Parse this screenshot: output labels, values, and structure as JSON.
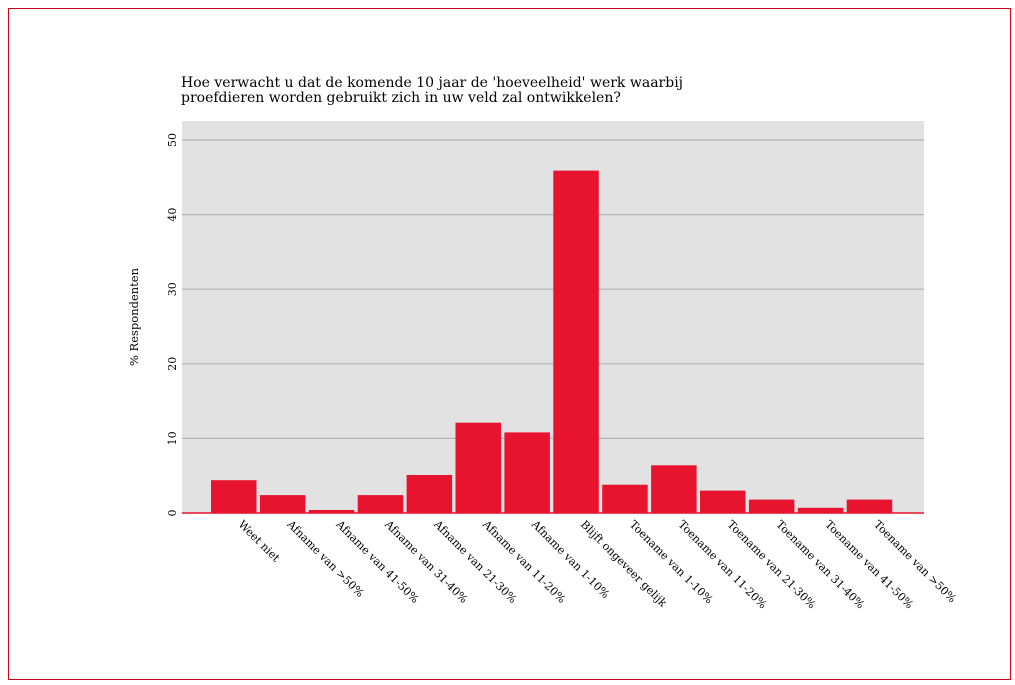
{
  "chart_data": {
    "type": "bar",
    "title": "Hoe verwacht u dat de komende 10 jaar de 'hoeveelheid' werk waarbij proefdieren worden gebruikt zich in uw veld zal ontwikkelen?",
    "title_lines": [
      "Hoe verwacht u dat de komende 10 jaar de 'hoeveelheid' werk waarbij",
      "proefdieren worden gebruikt zich in uw veld zal ontwikkelen?"
    ],
    "xlabel": "",
    "ylabel": "% Respondenten",
    "ylim": [
      0,
      50
    ],
    "yticks": [
      "0",
      "10",
      "20",
      "30",
      "40",
      "50"
    ],
    "categories": [
      "Weet niet",
      "Afname van >50%",
      "Afname van 41-50%",
      "Afname van 31-40%",
      "Afname van 21-30%",
      "Afname van 11-20%",
      "Afname van 1-10%",
      "Blijft ongeveer gelijk",
      "Toename van 1-10%",
      "Toename van 11-20%",
      "Toename van 21-30%",
      "Toename van 31-40%",
      "Toename van 41-50%",
      "Toename van >50%"
    ],
    "values": [
      4.4,
      2.4,
      0.4,
      2.4,
      5.1,
      12.1,
      10.8,
      45.9,
      3.8,
      6.4,
      3.0,
      1.8,
      0.7,
      1.8
    ],
    "grid": true,
    "colors": {
      "bar": "#e8132e",
      "plot_background": "#e2e2e2",
      "gridline": "#b4b4b4",
      "frame": "#d0021b",
      "baseline": "#e8132e"
    }
  }
}
